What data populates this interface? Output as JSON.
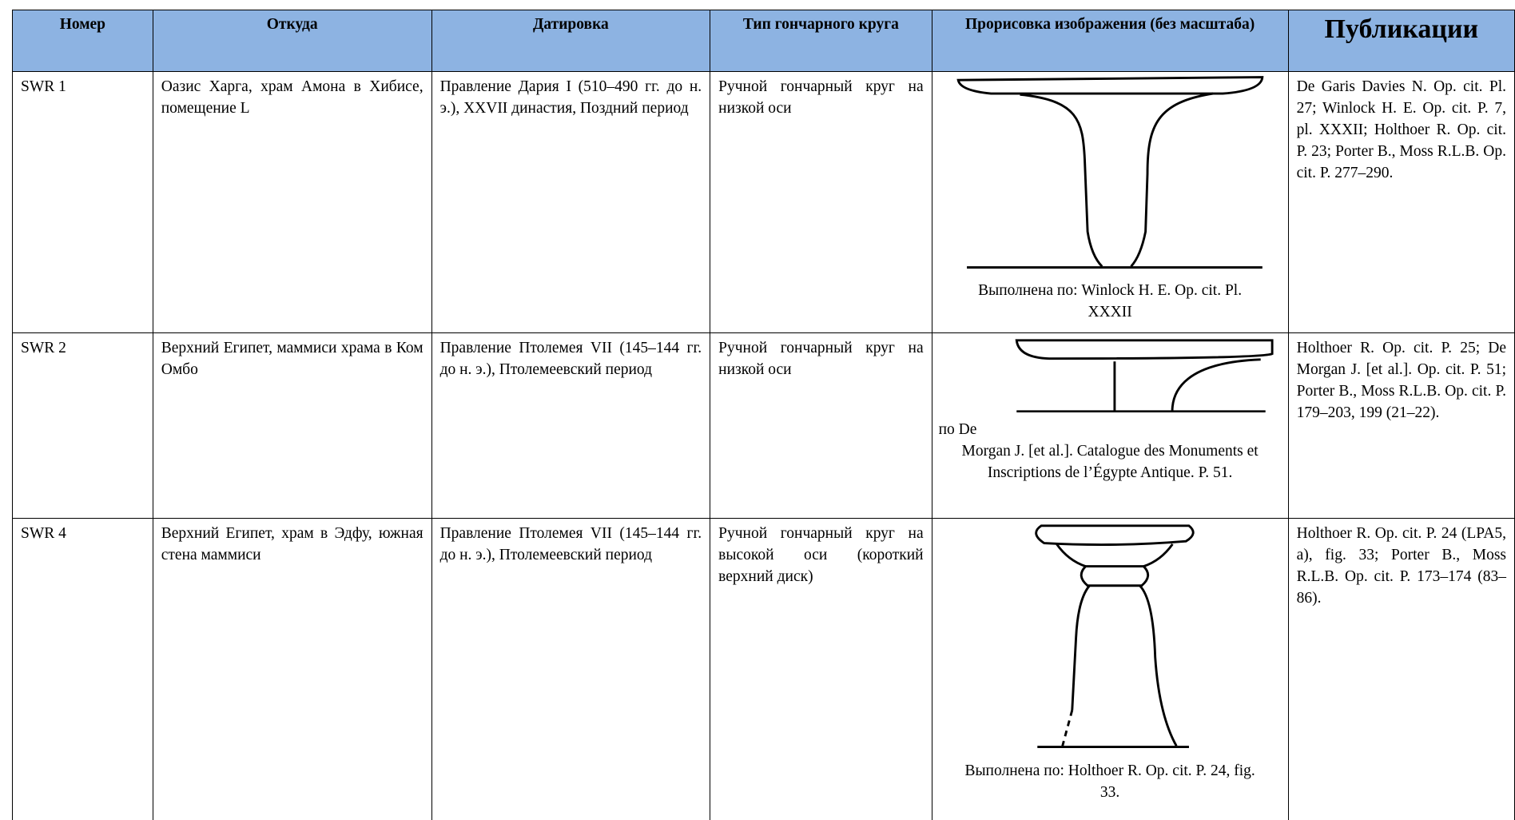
{
  "table": {
    "header": [
      "Номер",
      "Откуда",
      "Датировка",
      "Тип гончарного круга",
      "Прорисовка изображения (без масштаба)",
      "Публикации"
    ],
    "rows": [
      {
        "number": "SWR 1",
        "origin": "Оазис Харга, храм Амона в Хибисе, помещение L",
        "dating": "Правление Дария I (510–490 гг. до н. э.), XXVII династия, Поздний период",
        "wheel": "Ручной гончарный круг на низкой оси",
        "caption": [
          "Выполнена по: Winlock H. E. Op. cit. Pl. XXXII"
        ],
        "publications": "De Garis Davies N. Op. cit. Pl. 27; Winlock H. E. Op. cit. P. 7, pl. XXXII; Holthoer R. Op. cit. P. 23; Porter B., Moss R.L.B. Op. cit. P. 277–290."
      },
      {
        "number": "SWR 2",
        "origin": "Верхний Египет, маммиси храма в Ком Омбо",
        "dating": "Правление Птолемея VII (145–144 гг. до н. э.), Птолемеевский период",
        "wheel": "Ручной гончарный круг на низкой оси",
        "caption": [
          "по De",
          "Morgan J. [et al.]. Catalogue des Monuments et Inscriptions de l’Égypte Antique. P. 51."
        ],
        "publications": "Holthoer R. Op. cit. P. 25; De Morgan J. [et al.]. Op. cit. P. 51; Porter B., Moss R.L.B. Op. cit. P. 179–203, 199 (21–22)."
      },
      {
        "number": "SWR 4",
        "origin": "Верхний Египет, храм в Эдфу, южная стена маммиси",
        "dating": "Правление Птолемея VII (145–144 гг. до н. э.), Птолемеевский период",
        "wheel": "Ручной гончарный круг на высокой оси (короткий верхний диск)",
        "caption": [
          "Выполнена по: Holthoer R. Op. cit. P. 24, fig. 33."
        ],
        "publications": "Holthoer R. Op. cit. P. 24 (LPA5, a), fig. 33; Porter B., Moss R.L.B. Op. cit. P. 173–174 (83–86)."
      }
    ]
  }
}
